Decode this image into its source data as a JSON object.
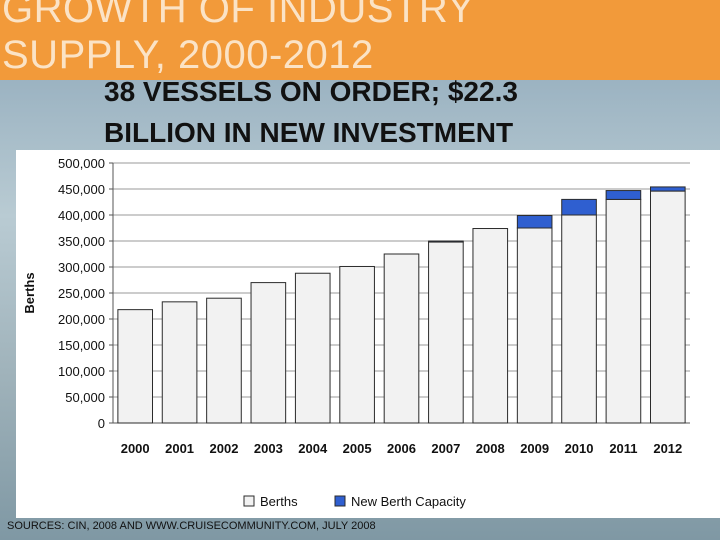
{
  "slide": {
    "title": "GROWTH OF INDUSTRY\nSUPPLY, 2000-2012",
    "subtitle": "38 VESSELS ON ORDER; $22.3\nBILLION IN NEW INVESTMENT",
    "source": "SOURCES: CIN, 2008 AND WWW.CRUISECOMMUNITY.COM, JULY 2008"
  },
  "colors": {
    "title_band": "#f29a3a",
    "berths": "#f2f2f2",
    "new_capacity": "#2f5fd0"
  },
  "chart_data": {
    "type": "bar",
    "stacked": true,
    "title": "",
    "xlabel": "",
    "ylabel": "Berths",
    "ylim": [
      0,
      500000
    ],
    "yticks": [
      0,
      50000,
      100000,
      150000,
      200000,
      250000,
      300000,
      350000,
      400000,
      450000,
      500000
    ],
    "ytick_labels": [
      "0",
      "50,000",
      "100,000",
      "150,000",
      "200,000",
      "250,000",
      "300,000",
      "350,000",
      "400,000",
      "450,000",
      "500,000"
    ],
    "grid": true,
    "legend": "bottom",
    "categories": [
      "2000",
      "2001",
      "2002",
      "2003",
      "2004",
      "2005",
      "2006",
      "2007",
      "2008",
      "2009",
      "2010",
      "2011",
      "2012"
    ],
    "series": [
      {
        "name": "Berths",
        "values": [
          218000,
          233000,
          240000,
          270000,
          288000,
          301000,
          325000,
          348000,
          374000,
          375000,
          400000,
          430000,
          446000
        ]
      },
      {
        "name": "New Berth Capacity",
        "values": [
          0,
          0,
          0,
          0,
          0,
          0,
          0,
          2000,
          0,
          24000,
          30000,
          17000,
          8000
        ]
      }
    ]
  }
}
